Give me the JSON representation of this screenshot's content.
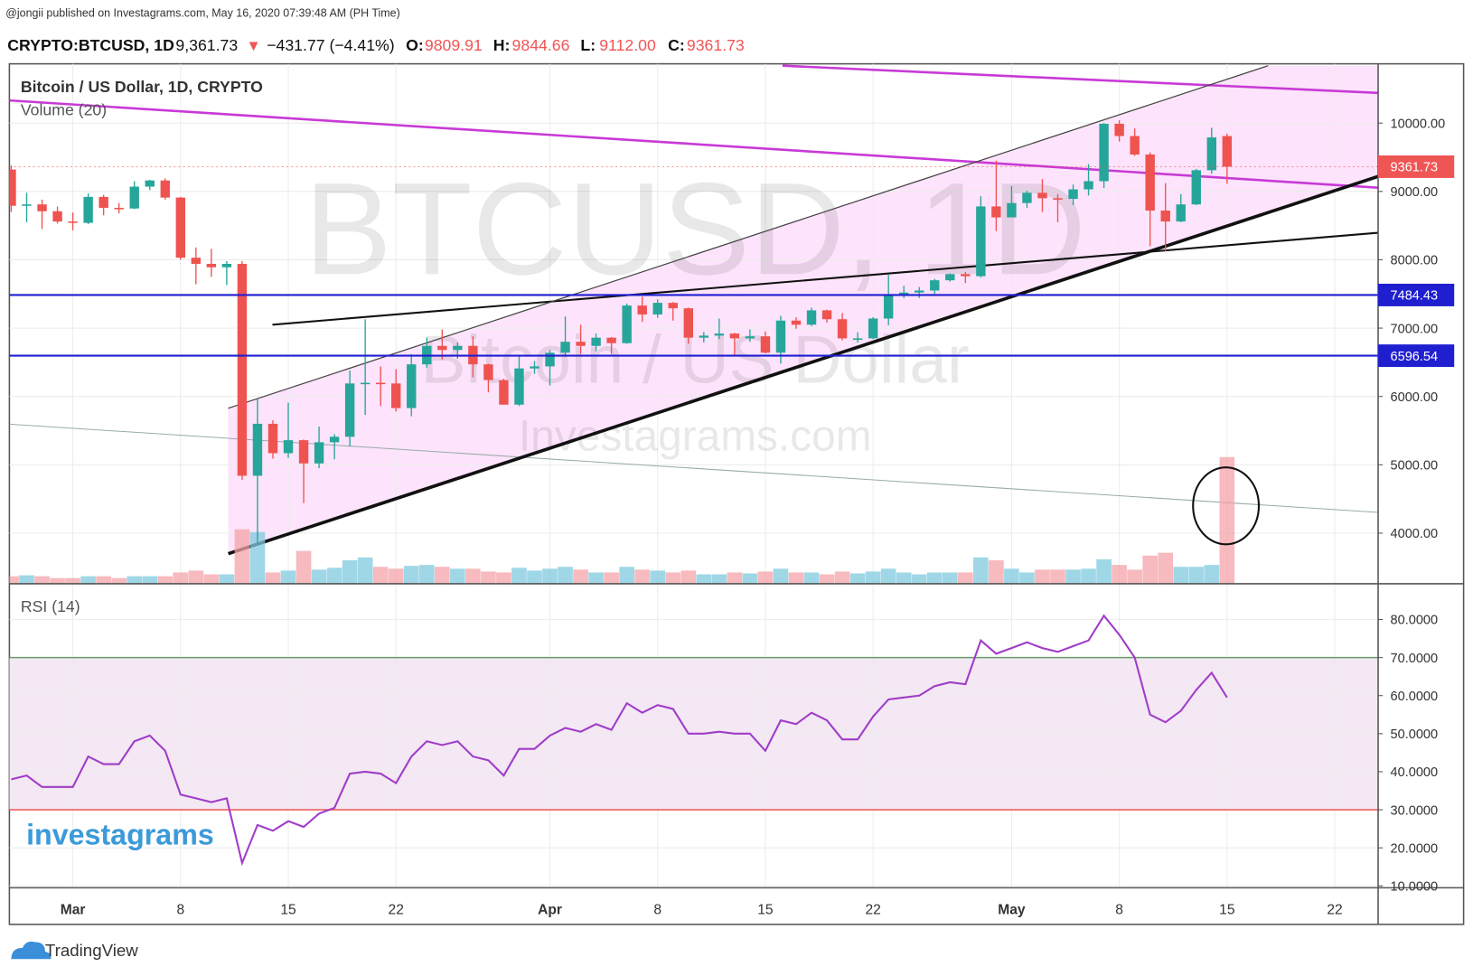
{
  "header": {
    "published": "@jongii published on Investagrams.com, May 16, 2020 07:39:48 AM (PH Time)",
    "symbol": "CRYPTO:BTCUSD, 1D",
    "last": "9,361.73",
    "arrow": "▼",
    "change": "−431.77 (−4.41%)",
    "ohlc": [
      {
        "label": "O:",
        "value": "9809.91"
      },
      {
        "label": "H:",
        "value": "9844.66"
      },
      {
        "label": "L:",
        "value": "9112.00"
      },
      {
        "label": "C:",
        "value": "9361.73"
      }
    ]
  },
  "watermark": {
    "symbol": "BTCUSD, 1D",
    "name": "Bitcoin / US Dollar",
    "site": "Investagrams.com"
  },
  "branding": {
    "logo": "investagrams",
    "footer": "TradingView"
  },
  "chart_data": {
    "type": "candlestick",
    "title": "Bitcoin / US Dollar, 1D, CRYPTO",
    "volume_label": "Volume (20)",
    "colors": {
      "up": "#26a69a",
      "down": "#ef5350",
      "volume_up": "#7fc9dd",
      "volume_down": "#f4a3a8"
    },
    "categories": [
      "Feb 26",
      "Feb 27",
      "Feb 28",
      "Feb 29",
      "Mar 1",
      "Mar 2",
      "Mar 3",
      "Mar 4",
      "Mar 5",
      "Mar 6",
      "Mar 7",
      "Mar 8",
      "Mar 9",
      "Mar 10",
      "Mar 11",
      "Mar 12",
      "Mar 13",
      "Mar 14",
      "Mar 15",
      "Mar 16",
      "Mar 17",
      "Mar 18",
      "Mar 19",
      "Mar 20",
      "Mar 21",
      "Mar 22",
      "Mar 23",
      "Mar 24",
      "Mar 25",
      "Mar 26",
      "Mar 27",
      "Mar 28",
      "Mar 29",
      "Mar 30",
      "Mar 31",
      "Apr 1",
      "Apr 2",
      "Apr 3",
      "Apr 4",
      "Apr 5",
      "Apr 6",
      "Apr 7",
      "Apr 8",
      "Apr 9",
      "Apr 10",
      "Apr 11",
      "Apr 12",
      "Apr 13",
      "Apr 14",
      "Apr 15",
      "Apr 16",
      "Apr 17",
      "Apr 18",
      "Apr 19",
      "Apr 20",
      "Apr 21",
      "Apr 22",
      "Apr 23",
      "Apr 24",
      "Apr 25",
      "Apr 26",
      "Apr 27",
      "Apr 28",
      "Apr 29",
      "Apr 30",
      "May 1",
      "May 2",
      "May 3",
      "May 4",
      "May 5",
      "May 6",
      "May 7",
      "May 8",
      "May 9",
      "May 10",
      "May 11",
      "May 12",
      "May 13",
      "May 14",
      "May 15"
    ],
    "open": [
      9320,
      8790,
      8810,
      8710,
      8560,
      8540,
      8920,
      8760,
      8750,
      9070,
      9160,
      8910,
      8030,
      7940,
      7890,
      7940,
      4840,
      5600,
      5170,
      5360,
      5020,
      5330,
      5410,
      6190,
      6200,
      6190,
      5830,
      6470,
      6740,
      6680,
      6740,
      6470,
      6240,
      5880,
      6410,
      6440,
      6640,
      6800,
      6740,
      6860,
      6780,
      7330,
      7200,
      7370,
      7290,
      6860,
      6890,
      6920,
      6850,
      6880,
      6640,
      7110,
      7050,
      7260,
      7130,
      6850,
      6850,
      7140,
      7490,
      7520,
      7550,
      7700,
      7790,
      7760,
      8780,
      8620,
      8830,
      8980,
      8900,
      8890,
      9030,
      9150,
      9990,
      9810,
      9540,
      8720,
      8560,
      8810,
      9310,
      9809.91
    ],
    "high": [
      9380,
      8980,
      8880,
      8780,
      8690,
      8970,
      8950,
      8830,
      9150,
      9170,
      9190,
      8920,
      8180,
      8160,
      7980,
      7980,
      5960,
      5650,
      5910,
      5370,
      5560,
      5450,
      6380,
      7130,
      6440,
      6400,
      6620,
      6860,
      6980,
      6790,
      6880,
      6480,
      6260,
      6600,
      6520,
      6680,
      7170,
      7050,
      6920,
      6870,
      7360,
      7460,
      7420,
      7380,
      7300,
      6940,
      7140,
      6930,
      6980,
      6950,
      7180,
      7160,
      7300,
      7270,
      7220,
      6940,
      7160,
      7780,
      7620,
      7600,
      7720,
      7800,
      7820,
      8930,
      9450,
      9080,
      9010,
      9180,
      8960,
      9100,
      9400,
      10000,
      10040,
      9920,
      9570,
      9120,
      8960,
      9330,
      9930,
      9844.66
    ],
    "low": [
      8700,
      8550,
      8450,
      8530,
      8430,
      8520,
      8650,
      8680,
      8740,
      9020,
      8880,
      8000,
      7640,
      7750,
      7630,
      4780,
      3850,
      5090,
      5100,
      4440,
      4950,
      5080,
      5270,
      5730,
      5860,
      5780,
      5710,
      6420,
      6540,
      6550,
      6280,
      6060,
      5880,
      5860,
      6330,
      6160,
      6580,
      6620,
      6660,
      6620,
      6770,
      7090,
      7150,
      7110,
      6770,
      6790,
      6840,
      6610,
      6800,
      6630,
      6480,
      6990,
      7030,
      7080,
      6820,
      6790,
      6840,
      7040,
      7440,
      7440,
      7500,
      7680,
      7660,
      7740,
      8420,
      8620,
      8760,
      8700,
      8550,
      8800,
      8940,
      9050,
      9730,
      9520,
      8200,
      8120,
      8550,
      8800,
      9260,
      9112
    ],
    "close": [
      8790,
      8810,
      8710,
      8560,
      8540,
      8920,
      8760,
      8750,
      9070,
      9160,
      8910,
      8030,
      7940,
      7890,
      7940,
      4840,
      5600,
      5170,
      5360,
      5020,
      5330,
      5410,
      6190,
      6200,
      6190,
      5830,
      6470,
      6740,
      6680,
      6740,
      6470,
      6240,
      5880,
      6410,
      6440,
      6640,
      6800,
      6740,
      6860,
      6780,
      7330,
      7200,
      7370,
      7290,
      6860,
      6890,
      6920,
      6850,
      6880,
      6640,
      7110,
      7050,
      7260,
      7130,
      6850,
      6850,
      7140,
      7490,
      7520,
      7550,
      7700,
      7790,
      7760,
      8780,
      8620,
      8830,
      8980,
      8900,
      8890,
      9030,
      9150,
      9990,
      9810,
      9540,
      8720,
      8560,
      8810,
      9310,
      9790,
      9361.73
    ],
    "volume": [
      8,
      9,
      8,
      6,
      6,
      8,
      8,
      6,
      8,
      8,
      8,
      12,
      14,
      10,
      10,
      58,
      55,
      12,
      14,
      35,
      15,
      17,
      25,
      28,
      18,
      16,
      19,
      20,
      18,
      16,
      16,
      13,
      12,
      17,
      14,
      16,
      18,
      15,
      12,
      12,
      18,
      15,
      14,
      12,
      14,
      10,
      10,
      12,
      11,
      13,
      16,
      12,
      12,
      10,
      13,
      11,
      13,
      16,
      12,
      10,
      12,
      12,
      12,
      28,
      25,
      16,
      12,
      15,
      15,
      15,
      16,
      26,
      20,
      15,
      30,
      33,
      18,
      18,
      20,
      135
    ],
    "xlim": [
      "Feb 26",
      "May 25"
    ],
    "xticks": [
      {
        "value": "Mar 1",
        "label": "Mar"
      },
      {
        "value": "Mar 8",
        "label": "8"
      },
      {
        "value": "Mar 15",
        "label": "15"
      },
      {
        "value": "Mar 22",
        "label": "22"
      },
      {
        "value": "Apr 1",
        "label": "Apr"
      },
      {
        "value": "Apr 8",
        "label": "8"
      },
      {
        "value": "Apr 15",
        "label": "15"
      },
      {
        "value": "Apr 22",
        "label": "22"
      },
      {
        "value": "May 1",
        "label": "May"
      },
      {
        "value": "May 8",
        "label": "8"
      },
      {
        "value": "May 15",
        "label": "15"
      },
      {
        "value": "May 22",
        "label": "22"
      }
    ],
    "ylim": [
      3260,
      10867
    ],
    "yticks": [
      {
        "value": 4000,
        "label": "4000.00"
      },
      {
        "value": 5000,
        "label": "5000.00"
      },
      {
        "value": 6000,
        "label": "6000.00"
      },
      {
        "value": 7000,
        "label": "7000.00"
      },
      {
        "value": 8000,
        "label": "8000.00"
      },
      {
        "value": 9000,
        "label": "9000.00"
      },
      {
        "value": 10000,
        "label": "10000.00"
      }
    ],
    "last_price": {
      "value": 9361.73,
      "label": "9361.73",
      "color": "#f05555"
    },
    "horizontal_lines": [
      {
        "value": 7484.43,
        "label": "7484.43",
        "color": "#1f1fd0"
      },
      {
        "value": 6596.54,
        "label": "6596.54",
        "color": "#1f1fd0"
      }
    ],
    "rsi": {
      "name": "RSI (14)",
      "color": "#a03cc8",
      "band_color": "#f3e8f3",
      "ylim": [
        9.5,
        89.4
      ],
      "yticks": [
        {
          "value": 10,
          "label": "10.0000"
        },
        {
          "value": 20,
          "label": "20.0000"
        },
        {
          "value": 30,
          "label": "30.0000"
        },
        {
          "value": 40,
          "label": "40.0000"
        },
        {
          "value": 50,
          "label": "50.0000"
        },
        {
          "value": 60,
          "label": "60.0000"
        },
        {
          "value": 70,
          "label": "70.0000"
        },
        {
          "value": 80,
          "label": "80.0000"
        }
      ],
      "upper": {
        "value": 70,
        "color": "#6a9a6a"
      },
      "lower": {
        "value": 30,
        "color": "#f06060"
      },
      "values": [
        38,
        39,
        36,
        36,
        36,
        44,
        42,
        42,
        48,
        49.5,
        45.5,
        34,
        33,
        32,
        33,
        16,
        26,
        24.5,
        27,
        25.5,
        29,
        30.5,
        39.5,
        40,
        39.5,
        37,
        44,
        48,
        47,
        48,
        44,
        43,
        39,
        46,
        46,
        49.5,
        51.5,
        50.5,
        52.5,
        51,
        58,
        55.5,
        57.5,
        56.5,
        50,
        50,
        50.5,
        50,
        50,
        45.5,
        53.5,
        52.5,
        55.5,
        53.5,
        48.5,
        48.5,
        54.5,
        59,
        59.5,
        60,
        62.5,
        63.5,
        63,
        74.5,
        71,
        72.5,
        74,
        72.5,
        71.5,
        73,
        74.5,
        81,
        76,
        70,
        55,
        53,
        56,
        61.5,
        66,
        59.5
      ]
    }
  }
}
